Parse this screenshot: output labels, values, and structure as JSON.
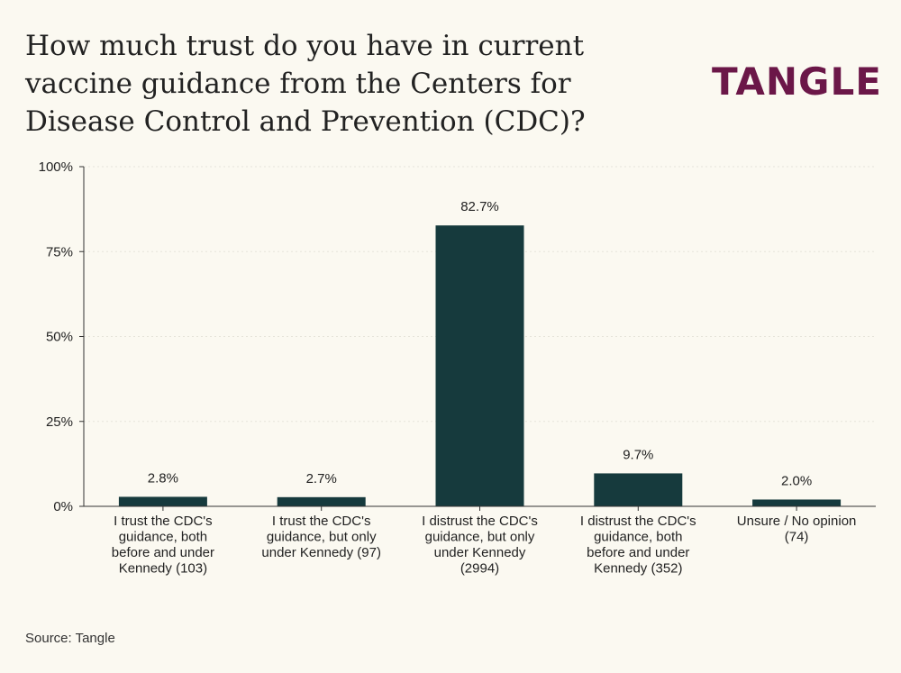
{
  "header": {
    "title": "How much trust do you have in current vaccine guidance from the Centers for Disease Control and Prevention (CDC)?",
    "logo_text": "TANGLE"
  },
  "footer": {
    "source": "Source: Tangle"
  },
  "colors": {
    "background": "#fbf9f1",
    "bar": "#163a3d",
    "brand": "#6b1748",
    "grid": "#e6e4da"
  },
  "chart_data": {
    "type": "bar",
    "categories": [
      [
        "I trust the CDC's",
        "guidance, both",
        "before and under",
        "Kennedy (103)"
      ],
      [
        "I trust the CDC's",
        "guidance, but only",
        "under Kennedy (97)"
      ],
      [
        "I distrust the CDC's",
        "guidance, but only",
        "under Kennedy",
        "(2994)"
      ],
      [
        "I distrust the CDC's",
        "guidance, both",
        "before and under",
        "Kennedy (352)"
      ],
      [
        "Unsure / No opinion",
        "(74)"
      ]
    ],
    "values": [
      2.8,
      2.7,
      82.7,
      9.7,
      2.0
    ],
    "data_labels": [
      "2.8%",
      "2.7%",
      "82.7%",
      "9.7%",
      "2.0%"
    ],
    "yticks": [
      0,
      25,
      50,
      75,
      100
    ],
    "ytick_labels": [
      "0%",
      "25%",
      "50%",
      "75%",
      "100%"
    ],
    "ylim": [
      0,
      100
    ],
    "grid": true,
    "legend": false
  }
}
